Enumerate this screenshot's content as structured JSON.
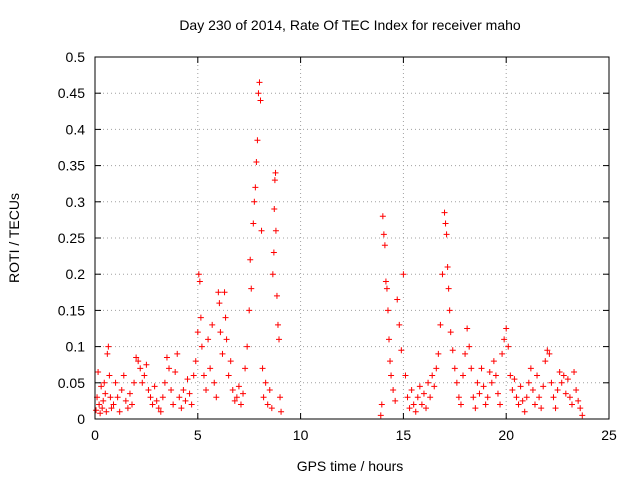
{
  "chart_data": {
    "type": "scatter",
    "title": "Day 230 of 2014, Rate Of TEC Index for receiver maho",
    "xlabel": "GPS time / hours",
    "ylabel": "ROTI / TECUs",
    "xlim": [
      0,
      25
    ],
    "ylim": [
      0,
      0.5
    ],
    "xticks": [
      0,
      5,
      10,
      15,
      20,
      25
    ],
    "yticks": [
      0,
      0.05,
      0.1,
      0.15,
      0.2,
      0.25,
      0.3,
      0.35,
      0.4,
      0.45,
      0.5
    ],
    "ytick_labels": [
      "0",
      "0.05",
      "0.1",
      "0.15",
      "0.2",
      "0.25",
      "0.3",
      "0.35",
      "0.4",
      "0.45",
      "0.5"
    ],
    "grid": true,
    "marker": "+",
    "color": "#ff0000",
    "series": [
      {
        "name": "ROTI",
        "points": [
          [
            0.05,
            0.012
          ],
          [
            0.1,
            0.03
          ],
          [
            0.15,
            0.065
          ],
          [
            0.2,
            0.02
          ],
          [
            0.25,
            0.008
          ],
          [
            0.3,
            0.045
          ],
          [
            0.35,
            0.015
          ],
          [
            0.4,
            0.025
          ],
          [
            0.45,
            0.05
          ],
          [
            0.5,
            0.035
          ],
          [
            0.55,
            0.01
          ],
          [
            0.6,
            0.09
          ],
          [
            0.65,
            0.1
          ],
          [
            0.7,
            0.06
          ],
          [
            0.75,
            0.03
          ],
          [
            0.8,
            0.015
          ],
          [
            0.9,
            0.02
          ],
          [
            1.0,
            0.05
          ],
          [
            1.1,
            0.03
          ],
          [
            1.2,
            0.01
          ],
          [
            1.3,
            0.04
          ],
          [
            1.4,
            0.06
          ],
          [
            1.5,
            0.025
          ],
          [
            1.6,
            0.015
          ],
          [
            1.7,
            0.035
          ],
          [
            1.8,
            0.02
          ],
          [
            1.9,
            0.05
          ],
          [
            2.0,
            0.085
          ],
          [
            2.1,
            0.08
          ],
          [
            2.2,
            0.07
          ],
          [
            2.3,
            0.05
          ],
          [
            2.4,
            0.06
          ],
          [
            2.5,
            0.075
          ],
          [
            2.6,
            0.04
          ],
          [
            2.7,
            0.03
          ],
          [
            2.8,
            0.02
          ],
          [
            2.9,
            0.045
          ],
          [
            3.0,
            0.025
          ],
          [
            3.1,
            0.015
          ],
          [
            3.2,
            0.01
          ],
          [
            3.3,
            0.03
          ],
          [
            3.4,
            0.05
          ],
          [
            3.5,
            0.085
          ],
          [
            3.6,
            0.07
          ],
          [
            3.7,
            0.04
          ],
          [
            3.8,
            0.02
          ],
          [
            3.9,
            0.065
          ],
          [
            4.0,
            0.09
          ],
          [
            4.1,
            0.03
          ],
          [
            4.2,
            0.015
          ],
          [
            4.3,
            0.04
          ],
          [
            4.4,
            0.025
          ],
          [
            4.5,
            0.055
          ],
          [
            4.6,
            0.035
          ],
          [
            4.7,
            0.02
          ],
          [
            4.8,
            0.06
          ],
          [
            4.9,
            0.08
          ],
          [
            5.0,
            0.12
          ],
          [
            5.05,
            0.2
          ],
          [
            5.1,
            0.19
          ],
          [
            5.15,
            0.14
          ],
          [
            5.2,
            0.1
          ],
          [
            5.3,
            0.06
          ],
          [
            5.4,
            0.04
          ],
          [
            5.5,
            0.11
          ],
          [
            5.6,
            0.07
          ],
          [
            5.7,
            0.13
          ],
          [
            5.8,
            0.05
          ],
          [
            5.9,
            0.03
          ],
          [
            6.0,
            0.175
          ],
          [
            6.05,
            0.16
          ],
          [
            6.1,
            0.12
          ],
          [
            6.2,
            0.09
          ],
          [
            6.3,
            0.175
          ],
          [
            6.35,
            0.14
          ],
          [
            6.4,
            0.11
          ],
          [
            6.5,
            0.06
          ],
          [
            6.6,
            0.08
          ],
          [
            6.7,
            0.04
          ],
          [
            6.8,
            0.025
          ],
          [
            6.9,
            0.03
          ],
          [
            7.0,
            0.045
          ],
          [
            7.1,
            0.02
          ],
          [
            7.2,
            0.035
          ],
          [
            7.3,
            0.07
          ],
          [
            7.4,
            0.1
          ],
          [
            7.5,
            0.15
          ],
          [
            7.55,
            0.22
          ],
          [
            7.6,
            0.18
          ],
          [
            7.7,
            0.27
          ],
          [
            7.75,
            0.3
          ],
          [
            7.8,
            0.32
          ],
          [
            7.85,
            0.355
          ],
          [
            7.9,
            0.385
          ],
          [
            7.95,
            0.45
          ],
          [
            8.0,
            0.465
          ],
          [
            8.05,
            0.44
          ],
          [
            8.1,
            0.26
          ],
          [
            8.15,
            0.07
          ],
          [
            8.2,
            0.03
          ],
          [
            8.3,
            0.05
          ],
          [
            8.4,
            0.02
          ],
          [
            8.5,
            0.04
          ],
          [
            8.6,
            0.015
          ],
          [
            8.65,
            0.2
          ],
          [
            8.7,
            0.23
          ],
          [
            8.72,
            0.29
          ],
          [
            8.75,
            0.33
          ],
          [
            8.78,
            0.34
          ],
          [
            8.8,
            0.26
          ],
          [
            8.85,
            0.17
          ],
          [
            8.9,
            0.13
          ],
          [
            8.95,
            0.11
          ],
          [
            9.0,
            0.03
          ],
          [
            9.05,
            0.01
          ],
          [
            13.9,
            0.005
          ],
          [
            13.95,
            0.02
          ],
          [
            14.0,
            0.28
          ],
          [
            14.05,
            0.255
          ],
          [
            14.1,
            0.24
          ],
          [
            14.15,
            0.19
          ],
          [
            14.2,
            0.18
          ],
          [
            14.25,
            0.15
          ],
          [
            14.3,
            0.11
          ],
          [
            14.35,
            0.08
          ],
          [
            14.4,
            0.06
          ],
          [
            14.5,
            0.04
          ],
          [
            14.6,
            0.025
          ],
          [
            14.7,
            0.165
          ],
          [
            14.8,
            0.13
          ],
          [
            14.9,
            0.095
          ],
          [
            15.0,
            0.2
          ],
          [
            15.1,
            0.06
          ],
          [
            15.2,
            0.03
          ],
          [
            15.3,
            0.015
          ],
          [
            15.4,
            0.04
          ],
          [
            15.5,
            0.02
          ],
          [
            15.6,
            0.01
          ],
          [
            15.7,
            0.03
          ],
          [
            15.8,
            0.045
          ],
          [
            15.9,
            0.02
          ],
          [
            16.0,
            0.035
          ],
          [
            16.1,
            0.015
          ],
          [
            16.2,
            0.05
          ],
          [
            16.3,
            0.03
          ],
          [
            16.4,
            0.06
          ],
          [
            16.5,
            0.045
          ],
          [
            16.6,
            0.07
          ],
          [
            16.7,
            0.09
          ],
          [
            16.8,
            0.13
          ],
          [
            16.9,
            0.2
          ],
          [
            17.0,
            0.285
          ],
          [
            17.05,
            0.27
          ],
          [
            17.1,
            0.255
          ],
          [
            17.15,
            0.21
          ],
          [
            17.2,
            0.18
          ],
          [
            17.25,
            0.15
          ],
          [
            17.3,
            0.12
          ],
          [
            17.4,
            0.095
          ],
          [
            17.5,
            0.07
          ],
          [
            17.6,
            0.05
          ],
          [
            17.7,
            0.03
          ],
          [
            17.8,
            0.02
          ],
          [
            17.9,
            0.06
          ],
          [
            18.0,
            0.09
          ],
          [
            18.1,
            0.125
          ],
          [
            18.2,
            0.1
          ],
          [
            18.3,
            0.07
          ],
          [
            18.4,
            0.03
          ],
          [
            18.5,
            0.015
          ],
          [
            18.6,
            0.05
          ],
          [
            18.7,
            0.035
          ],
          [
            18.8,
            0.07
          ],
          [
            18.9,
            0.045
          ],
          [
            19.0,
            0.02
          ],
          [
            19.1,
            0.03
          ],
          [
            19.2,
            0.065
          ],
          [
            19.3,
            0.05
          ],
          [
            19.4,
            0.08
          ],
          [
            19.5,
            0.06
          ],
          [
            19.6,
            0.035
          ],
          [
            19.7,
            0.02
          ],
          [
            19.8,
            0.09
          ],
          [
            19.9,
            0.11
          ],
          [
            20.0,
            0.125
          ],
          [
            20.1,
            0.1
          ],
          [
            20.2,
            0.06
          ],
          [
            20.3,
            0.04
          ],
          [
            20.4,
            0.055
          ],
          [
            20.5,
            0.03
          ],
          [
            20.6,
            0.02
          ],
          [
            20.7,
            0.045
          ],
          [
            20.8,
            0.025
          ],
          [
            20.9,
            0.01
          ],
          [
            21.0,
            0.03
          ],
          [
            21.1,
            0.05
          ],
          [
            21.2,
            0.07
          ],
          [
            21.3,
            0.04
          ],
          [
            21.4,
            0.02
          ],
          [
            21.5,
            0.06
          ],
          [
            21.6,
            0.03
          ],
          [
            21.7,
            0.015
          ],
          [
            21.8,
            0.045
          ],
          [
            21.9,
            0.08
          ],
          [
            22.0,
            0.095
          ],
          [
            22.1,
            0.09
          ],
          [
            22.2,
            0.05
          ],
          [
            22.3,
            0.03
          ],
          [
            22.4,
            0.015
          ],
          [
            22.5,
            0.04
          ],
          [
            22.6,
            0.065
          ],
          [
            22.7,
            0.05
          ],
          [
            22.8,
            0.06
          ],
          [
            22.9,
            0.035
          ],
          [
            23.0,
            0.055
          ],
          [
            23.1,
            0.03
          ],
          [
            23.2,
            0.02
          ],
          [
            23.3,
            0.065
          ],
          [
            23.4,
            0.04
          ],
          [
            23.5,
            0.025
          ],
          [
            23.6,
            0.015
          ],
          [
            23.7,
            0.005
          ]
        ]
      }
    ]
  }
}
